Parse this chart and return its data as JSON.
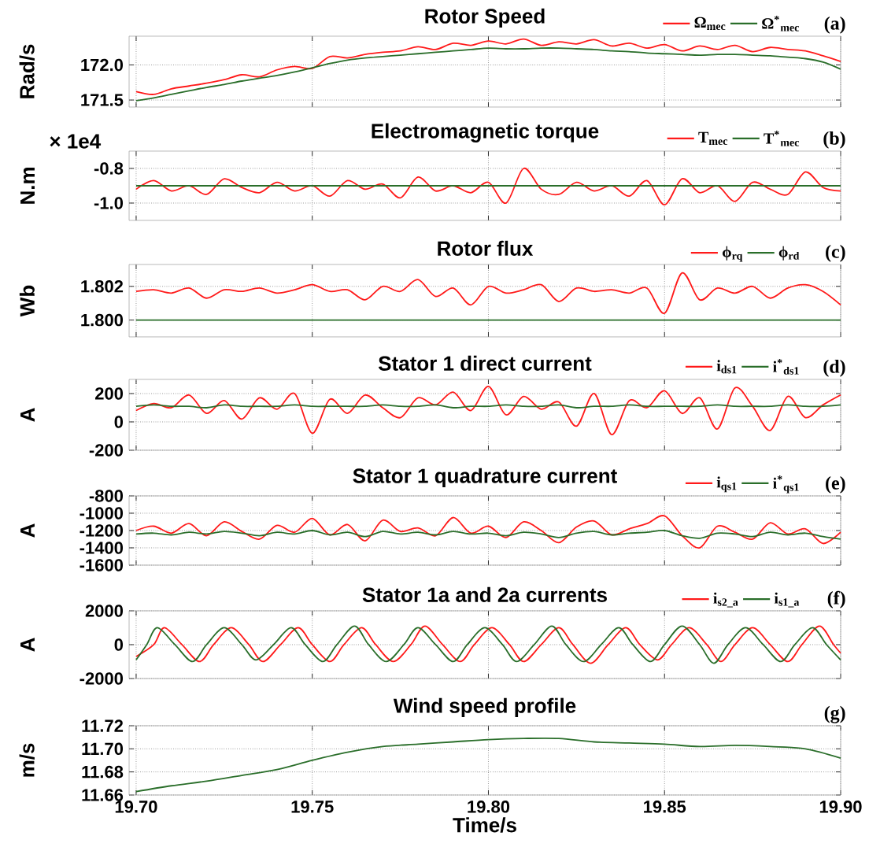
{
  "chart_data": [
    {
      "type": "line",
      "title": "Rotor Speed",
      "ylabel": "Rad/s",
      "annotations": [
        "(a)"
      ],
      "xlim": [
        19.698,
        19.9
      ],
      "xticks": [
        {
          "value": 19.7,
          "label": null
        },
        {
          "value": 19.75,
          "label": null
        },
        {
          "value": 19.8,
          "label": null
        },
        {
          "value": 19.85,
          "label": null
        },
        {
          "value": 19.9,
          "label": null
        }
      ],
      "ylim": [
        171.4,
        172.41
      ],
      "yticks": [
        {
          "value": 171.5,
          "label": "171.5"
        },
        {
          "value": 172.0,
          "label": "172.0"
        }
      ],
      "grid": true,
      "legend": "top right",
      "tick_labels": "y",
      "x": [
        19.7,
        19.705,
        19.71,
        19.715,
        19.72,
        19.725,
        19.73,
        19.735,
        19.74,
        19.745,
        19.75,
        19.755,
        19.76,
        19.765,
        19.77,
        19.775,
        19.78,
        19.785,
        19.79,
        19.795,
        19.8,
        19.805,
        19.81,
        19.815,
        19.82,
        19.825,
        19.83,
        19.835,
        19.84,
        19.845,
        19.85,
        19.855,
        19.86,
        19.865,
        19.87,
        19.875,
        19.88,
        19.885,
        19.89,
        19.895,
        19.9
      ],
      "series": [
        {
          "name": "Ω$_{mec}$",
          "color": "#ff1a1a",
          "values": [
            171.62,
            171.58,
            171.66,
            171.7,
            171.74,
            171.79,
            171.86,
            171.83,
            171.93,
            171.98,
            171.95,
            172.12,
            172.1,
            172.15,
            172.18,
            172.2,
            172.26,
            172.22,
            172.31,
            172.28,
            172.34,
            172.3,
            172.37,
            172.28,
            172.33,
            172.3,
            172.36,
            172.27,
            172.31,
            172.24,
            172.29,
            172.2,
            172.27,
            172.22,
            172.28,
            172.19,
            172.25,
            172.22,
            172.2,
            172.13,
            172.05
          ]
        },
        {
          "name": "Ω$^{*}$$_{mec}$",
          "color": "#2a6e2a",
          "values": [
            171.49,
            171.53,
            171.58,
            171.63,
            171.68,
            171.72,
            171.77,
            171.81,
            171.85,
            171.9,
            171.96,
            172.02,
            172.07,
            172.1,
            172.12,
            172.14,
            172.16,
            172.18,
            172.2,
            172.22,
            172.24,
            172.23,
            172.23,
            172.24,
            172.24,
            172.23,
            172.22,
            172.2,
            172.19,
            172.17,
            172.16,
            172.15,
            172.14,
            172.15,
            172.15,
            172.14,
            172.13,
            172.11,
            172.09,
            172.04,
            171.94
          ]
        }
      ]
    },
    {
      "type": "line",
      "title": "Electromagnetic torque",
      "ylabel": "N.m",
      "annotations": [
        "(b)",
        "× 1e4"
      ],
      "xlim": [
        19.698,
        19.9
      ],
      "xticks": [
        {
          "value": 19.7,
          "label": null
        },
        {
          "value": 19.75,
          "label": null
        },
        {
          "value": 19.8,
          "label": null
        },
        {
          "value": 19.85,
          "label": null
        },
        {
          "value": 19.9,
          "label": null
        }
      ],
      "ylim": [
        -1.1,
        -0.7
      ],
      "yticks": [
        {
          "value": -1.0,
          "label": "-1.0"
        },
        -0.8
      ],
      "grid": true,
      "legend": "top right",
      "tick_labels": "y",
      "x": [
        19.7,
        19.705,
        19.71,
        19.715,
        19.72,
        19.725,
        19.73,
        19.735,
        19.74,
        19.745,
        19.75,
        19.755,
        19.76,
        19.765,
        19.77,
        19.775,
        19.78,
        19.785,
        19.79,
        19.795,
        19.8,
        19.805,
        19.81,
        19.815,
        19.82,
        19.825,
        19.83,
        19.835,
        19.84,
        19.845,
        19.85,
        19.855,
        19.86,
        19.865,
        19.87,
        19.875,
        19.88,
        19.885,
        19.89,
        19.895,
        19.9
      ],
      "series": [
        {
          "name": "T$_{mec}$",
          "color": "#ff1a1a",
          "values": [
            -0.92,
            -0.87,
            -0.93,
            -0.9,
            -0.95,
            -0.86,
            -0.91,
            -0.94,
            -0.88,
            -0.93,
            -0.9,
            -0.96,
            -0.87,
            -0.92,
            -0.89,
            -0.97,
            -0.85,
            -0.93,
            -0.9,
            -0.94,
            -0.88,
            -1.0,
            -0.8,
            -0.92,
            -0.95,
            -0.88,
            -0.93,
            -0.9,
            -0.96,
            -0.87,
            -1.01,
            -0.86,
            -0.94,
            -0.9,
            -0.99,
            -0.88,
            -0.92,
            -0.95,
            -0.82,
            -0.91,
            -0.93
          ]
        },
        {
          "name": "T$^{*}$$_{mec}$",
          "color": "#2a6e2a",
          "x": [
            19.7,
            19.9
          ],
          "values": [
            -0.9,
            -0.9
          ]
        }
      ]
    },
    {
      "type": "line",
      "title": "Rotor flux",
      "ylabel": "Wb",
      "annotations": [
        "(c)"
      ],
      "xlim": [
        19.698,
        19.9
      ],
      "xticks": [
        {
          "value": 19.7,
          "label": null
        },
        {
          "value": 19.75,
          "label": null
        },
        {
          "value": 19.8,
          "label": null
        },
        {
          "value": 19.85,
          "label": null
        },
        {
          "value": 19.9,
          "label": null
        }
      ],
      "ylim": [
        1.799,
        1.8033
      ],
      "yticks": [
        {
          "value": 1.8,
          "label": "1.800"
        },
        1.802
      ],
      "grid": true,
      "legend": "top right",
      "tick_labels": "y",
      "x": [
        19.7,
        19.705,
        19.71,
        19.715,
        19.72,
        19.725,
        19.73,
        19.735,
        19.74,
        19.745,
        19.75,
        19.755,
        19.76,
        19.765,
        19.77,
        19.775,
        19.78,
        19.785,
        19.79,
        19.795,
        19.8,
        19.805,
        19.81,
        19.815,
        19.82,
        19.825,
        19.83,
        19.835,
        19.84,
        19.845,
        19.85,
        19.855,
        19.86,
        19.865,
        19.87,
        19.875,
        19.88,
        19.885,
        19.89,
        19.895,
        19.9
      ],
      "series": [
        {
          "name": "ϕ$_{rq}$",
          "color": "#ff1a1a",
          "values": [
            1.8017,
            1.8018,
            1.8016,
            1.8019,
            1.8013,
            1.8018,
            1.8017,
            1.8019,
            1.8016,
            1.8018,
            1.8021,
            1.8017,
            1.8018,
            1.8012,
            1.802,
            1.8017,
            1.8024,
            1.8014,
            1.8019,
            1.8009,
            1.802,
            1.8016,
            1.8018,
            1.8021,
            1.8011,
            1.8019,
            1.8017,
            1.8018,
            1.8016,
            1.8019,
            1.8004,
            1.8028,
            1.8012,
            1.8019,
            1.8016,
            1.802,
            1.8013,
            1.8019,
            1.8021,
            1.8017,
            1.8009
          ]
        },
        {
          "name": "ϕ$_{rd}$",
          "color": "#2a6e2a",
          "x": [
            19.7,
            19.9
          ],
          "values": [
            1.8,
            1.8
          ]
        }
      ]
    },
    {
      "type": "line",
      "title": "Stator 1 direct current",
      "ylabel": "A",
      "annotations": [
        "(d)"
      ],
      "xlim": [
        19.698,
        19.9
      ],
      "xticks": [
        {
          "value": 19.7,
          "label": null
        },
        {
          "value": 19.75,
          "label": null
        },
        {
          "value": 19.8,
          "label": null
        },
        {
          "value": 19.85,
          "label": null
        },
        {
          "value": 19.9,
          "label": null
        }
      ],
      "ylim": [
        -200,
        300
      ],
      "yticks": [
        -200,
        0,
        200
      ],
      "grid": true,
      "legend": "top right",
      "tick_labels": "y",
      "x": [
        19.7,
        19.705,
        19.71,
        19.715,
        19.72,
        19.725,
        19.73,
        19.735,
        19.74,
        19.745,
        19.75,
        19.755,
        19.76,
        19.765,
        19.77,
        19.775,
        19.78,
        19.785,
        19.79,
        19.795,
        19.8,
        19.805,
        19.81,
        19.815,
        19.82,
        19.825,
        19.83,
        19.835,
        19.84,
        19.845,
        19.85,
        19.855,
        19.86,
        19.865,
        19.87,
        19.875,
        19.88,
        19.885,
        19.89,
        19.895,
        19.9
      ],
      "series": [
        {
          "name": "i$_{ds1}$",
          "color": "#ff1a1a",
          "values": [
            80,
            130,
            100,
            190,
            60,
            150,
            20,
            170,
            90,
            200,
            -80,
            160,
            60,
            190,
            100,
            30,
            170,
            120,
            210,
            80,
            250,
            50,
            180,
            90,
            140,
            -30,
            200,
            -90,
            150,
            100,
            220,
            60,
            170,
            -50,
            240,
            110,
            -60,
            180,
            30,
            120,
            190
          ]
        },
        {
          "name": "i$^{*}$$_{ds1}$",
          "color": "#2a6e2a",
          "values": [
            110,
            120,
            110,
            110,
            100,
            120,
            110,
            110,
            110,
            120,
            110,
            110,
            110,
            110,
            120,
            110,
            110,
            120,
            100,
            110,
            110,
            120,
            110,
            110,
            120,
            100,
            110,
            110,
            120,
            110,
            110,
            110,
            110,
            120,
            110,
            110,
            110,
            120,
            110,
            110,
            120
          ]
        }
      ]
    },
    {
      "type": "line",
      "title": "Stator 1 quadrature current",
      "ylabel": "A",
      "annotations": [
        "(e)"
      ],
      "xlim": [
        19.698,
        19.9
      ],
      "xticks": [
        {
          "value": 19.7,
          "label": null
        },
        {
          "value": 19.75,
          "label": null
        },
        {
          "value": 19.8,
          "label": null
        },
        {
          "value": 19.85,
          "label": null
        },
        {
          "value": 19.9,
          "label": null
        }
      ],
      "ylim": [
        -1600,
        -800
      ],
      "yticks": [
        -1600,
        -1400,
        -1200,
        -1000,
        -800
      ],
      "grid": true,
      "legend": "top right",
      "tick_labels": "y",
      "x": [
        19.7,
        19.705,
        19.71,
        19.715,
        19.72,
        19.725,
        19.73,
        19.735,
        19.74,
        19.745,
        19.75,
        19.755,
        19.76,
        19.765,
        19.77,
        19.775,
        19.78,
        19.785,
        19.79,
        19.795,
        19.8,
        19.805,
        19.81,
        19.815,
        19.82,
        19.825,
        19.83,
        19.835,
        19.84,
        19.845,
        19.85,
        19.855,
        19.86,
        19.865,
        19.87,
        19.875,
        19.88,
        19.885,
        19.89,
        19.895,
        19.9
      ],
      "series": [
        {
          "name": "i$_{qs1}$",
          "color": "#ff1a1a",
          "values": [
            -1200,
            -1150,
            -1230,
            -1120,
            -1260,
            -1100,
            -1210,
            -1300,
            -1140,
            -1220,
            -1060,
            -1250,
            -1130,
            -1320,
            -1080,
            -1210,
            -1170,
            -1260,
            -1050,
            -1230,
            -1150,
            -1280,
            -1100,
            -1200,
            -1340,
            -1160,
            -1090,
            -1250,
            -1180,
            -1120,
            -1030,
            -1260,
            -1400,
            -1150,
            -1220,
            -1300,
            -1110,
            -1240,
            -1180,
            -1350,
            -1220
          ]
        },
        {
          "name": "i$^{*}$$_{qs1}$",
          "color": "#2a6e2a",
          "values": [
            -1240,
            -1230,
            -1250,
            -1220,
            -1240,
            -1210,
            -1230,
            -1260,
            -1220,
            -1240,
            -1200,
            -1250,
            -1220,
            -1270,
            -1210,
            -1240,
            -1220,
            -1250,
            -1210,
            -1240,
            -1230,
            -1260,
            -1220,
            -1240,
            -1280,
            -1230,
            -1210,
            -1250,
            -1230,
            -1220,
            -1200,
            -1260,
            -1290,
            -1230,
            -1240,
            -1270,
            -1220,
            -1250,
            -1230,
            -1270,
            -1300
          ]
        }
      ]
    },
    {
      "type": "line",
      "title": "Stator 1a and 2a currents",
      "ylabel": "A",
      "annotations": [
        "(f)"
      ],
      "xlim": [
        19.698,
        19.9
      ],
      "xticks": [
        {
          "value": 19.7,
          "label": null
        },
        {
          "value": 19.75,
          "label": null
        },
        {
          "value": 19.8,
          "label": null
        },
        {
          "value": 19.85,
          "label": null
        },
        {
          "value": 19.9,
          "label": null
        }
      ],
      "ylim": [
        -2000,
        2000
      ],
      "yticks": [
        -2000,
        0,
        2000
      ],
      "grid": true,
      "legend": "top right",
      "tick_labels": "y",
      "series": [
        {
          "name": "i$_{s2_a}$",
          "color": "#ff1a1a",
          "x": [
            19.7,
            19.705,
            19.708,
            19.713,
            19.718,
            19.722,
            19.727,
            19.732,
            19.736,
            19.741,
            19.746,
            19.75,
            19.755,
            19.759,
            19.764,
            19.768,
            19.773,
            19.778,
            19.782,
            19.787,
            19.792,
            19.796,
            19.801,
            19.806,
            19.81,
            19.815,
            19.82,
            19.824,
            19.829,
            19.834,
            19.839,
            19.843,
            19.848,
            19.852,
            19.857,
            19.862,
            19.866,
            19.87,
            19.875,
            19.88,
            19.885,
            19.889,
            19.894,
            19.898,
            19.9
          ],
          "values": [
            -700,
            0,
            1000,
            0,
            -1000,
            0,
            1000,
            0,
            -1000,
            0,
            1000,
            0,
            -1000,
            0,
            1000,
            0,
            -1000,
            0,
            1100,
            0,
            -1000,
            0,
            1000,
            0,
            -1000,
            0,
            1000,
            0,
            -1100,
            0,
            1000,
            0,
            -900,
            0,
            1000,
            0,
            -1000,
            0,
            1000,
            0,
            -1000,
            0,
            1100,
            0,
            -500
          ]
        },
        {
          "name": "i$_{s1_a}$",
          "color": "#2a6e2a",
          "x": [
            19.7,
            19.703,
            19.706,
            19.711,
            19.716,
            19.72,
            19.725,
            19.73,
            19.734,
            19.739,
            19.744,
            19.748,
            19.753,
            19.757,
            19.762,
            19.766,
            19.771,
            19.776,
            19.78,
            19.785,
            19.79,
            19.794,
            19.799,
            19.804,
            19.808,
            19.813,
            19.818,
            19.822,
            19.827,
            19.832,
            19.837,
            19.841,
            19.846,
            19.85,
            19.855,
            19.86,
            19.864,
            19.868,
            19.873,
            19.878,
            19.883,
            19.887,
            19.892,
            19.896,
            19.9
          ],
          "values": [
            -900,
            0,
            1000,
            0,
            -1000,
            0,
            1000,
            0,
            -900,
            0,
            1000,
            0,
            -1000,
            0,
            1100,
            0,
            -1000,
            0,
            1000,
            0,
            -1000,
            0,
            1000,
            0,
            -1000,
            0,
            1100,
            0,
            -1000,
            0,
            1000,
            0,
            -1000,
            0,
            1100,
            0,
            -1100,
            0,
            1000,
            0,
            -1000,
            0,
            1000,
            0,
            -900
          ]
        }
      ]
    },
    {
      "type": "line",
      "title": "Wind speed profile",
      "xlabel": "Time/s",
      "ylabel": "m/s",
      "annotations": [
        "(g)"
      ],
      "xlim": [
        19.698,
        19.9
      ],
      "xticks": [
        {
          "value": 19.7,
          "label": "19.70"
        },
        19.75,
        {
          "value": 19.8,
          "label": "19.80"
        },
        19.85,
        {
          "value": 19.9,
          "label": "19.90"
        }
      ],
      "ylim": [
        11.66,
        11.72
      ],
      "yticks": [
        {
          "value": 11.66,
          "label": "11.66"
        },
        {
          "value": 11.68,
          "label": "11.68"
        },
        {
          "value": 11.7,
          "label": "11.70"
        },
        {
          "value": 11.72,
          "label": "11.72"
        }
      ],
      "grid": true,
      "series": [
        {
          "color": "#2a6e2a",
          "x": [
            19.7,
            19.71,
            19.72,
            19.73,
            19.74,
            19.75,
            19.76,
            19.77,
            19.78,
            19.79,
            19.8,
            19.81,
            19.82,
            19.83,
            19.84,
            19.85,
            19.86,
            19.87,
            19.88,
            19.89,
            19.9
          ],
          "values": [
            11.663,
            11.668,
            11.672,
            11.677,
            11.682,
            11.69,
            11.697,
            11.702,
            11.704,
            11.706,
            11.708,
            11.709,
            11.709,
            11.706,
            11.705,
            11.704,
            11.702,
            11.703,
            11.702,
            11.7,
            11.692
          ]
        }
      ]
    }
  ]
}
